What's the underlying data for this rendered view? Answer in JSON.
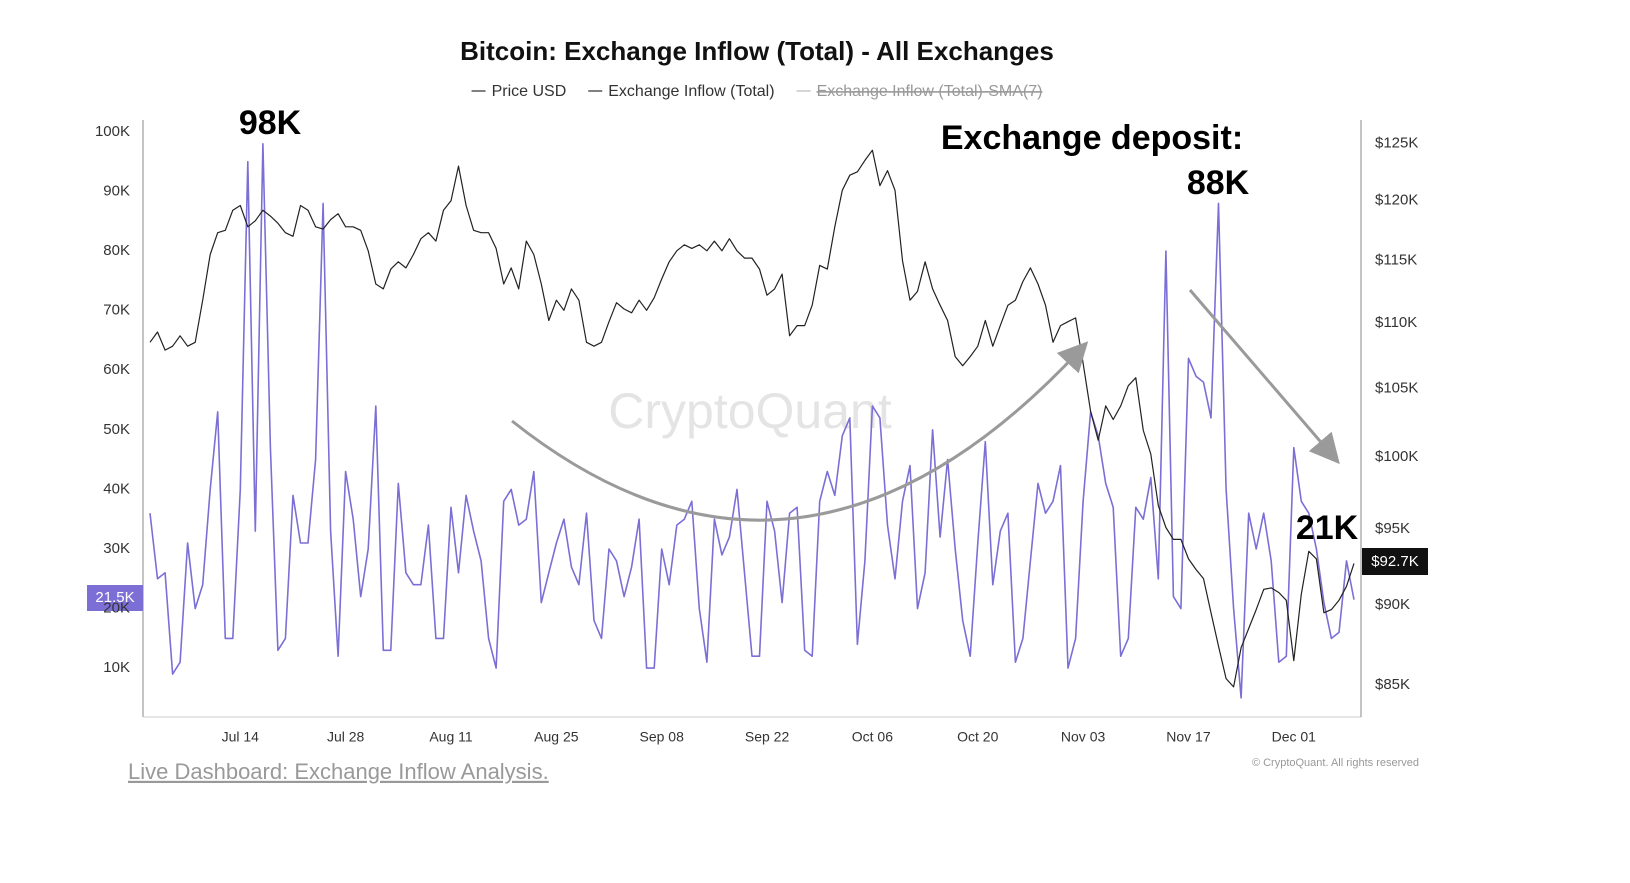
{
  "chart_data": {
    "type": "line",
    "title": "Bitcoin: Exchange Inflow (Total) - All Exchanges",
    "categories": [
      null,
      null,
      null,
      null,
      null,
      null,
      null,
      null,
      null,
      null,
      null,
      null,
      "Jul 14",
      null,
      null,
      null,
      null,
      null,
      null,
      null,
      null,
      null,
      null,
      null,
      null,
      null,
      "Jul 28",
      null,
      null,
      null,
      null,
      null,
      null,
      null,
      null,
      null,
      null,
      null,
      null,
      null,
      "Aug 11",
      null,
      null,
      null,
      null,
      null,
      null,
      null,
      null,
      null,
      null,
      null,
      null,
      null,
      "Aug 25",
      null,
      null,
      null,
      null,
      null,
      null,
      null,
      null,
      null,
      null,
      null,
      null,
      null,
      "Sep 08",
      null,
      null,
      null,
      null,
      null,
      null,
      null,
      null,
      null,
      null,
      null,
      null,
      null,
      "Sep 22",
      null,
      null,
      null,
      null,
      null,
      null,
      null,
      null,
      null,
      null,
      null,
      null,
      null,
      "Oct 06",
      null,
      null,
      null,
      null,
      null,
      null,
      null,
      null,
      null,
      null,
      null,
      null,
      null,
      "Oct 20",
      null,
      null,
      null,
      null,
      null,
      null,
      null,
      null,
      null,
      null,
      null,
      null,
      null,
      "Nov 03",
      null,
      null,
      null,
      null,
      null,
      null,
      null,
      null,
      null,
      null,
      null,
      null,
      null,
      "Nov 17",
      null,
      null,
      null,
      null,
      null,
      null,
      null,
      null,
      null,
      null,
      null,
      null,
      null,
      "Dec 01",
      null,
      null,
      null,
      null,
      null,
      null,
      null,
      null
    ],
    "series": [
      {
        "name": "Price USD",
        "color": "#222222",
        "axis": "y2",
        "values": [
          108500,
          109300,
          107900,
          108200,
          109000,
          108200,
          108500,
          111800,
          115500,
          117300,
          117500,
          119200,
          119600,
          117800,
          118300,
          119200,
          118700,
          118100,
          117300,
          117000,
          119600,
          119200,
          117800,
          117600,
          118400,
          118900,
          117800,
          117800,
          117500,
          115800,
          113100,
          112700,
          114300,
          114900,
          114400,
          115500,
          116800,
          117300,
          116600,
          119200,
          120000,
          123000,
          119600,
          117500,
          117300,
          117300,
          116000,
          113100,
          114400,
          112700,
          116600,
          115500,
          113100,
          110200,
          111800,
          111000,
          112700,
          111800,
          108500,
          108200,
          108500,
          110100,
          111600,
          111100,
          110800,
          111800,
          111000,
          112000,
          113500,
          114900,
          115800,
          116300,
          116000,
          116300,
          115800,
          116600,
          115800,
          116800,
          115800,
          115200,
          115200,
          114300,
          112200,
          112700,
          113900,
          109000,
          109800,
          109800,
          111400,
          114600,
          114300,
          117800,
          120900,
          122200,
          122500,
          123500,
          124400,
          121300,
          122600,
          120900,
          115000,
          111800,
          112500,
          114900,
          112700,
          111400,
          110200,
          107400,
          106700,
          107400,
          108200,
          110200,
          108200,
          109800,
          111400,
          111800,
          113300,
          114400,
          113100,
          111400,
          108500,
          109800,
          110100,
          110400,
          106900,
          103300,
          101200,
          103700,
          102700,
          103700,
          105200,
          105800,
          101900,
          100200,
          96600,
          95100,
          94300,
          94300,
          93000,
          92300,
          91700,
          89500,
          87400,
          85400,
          84900,
          87300,
          88500,
          89700,
          91000,
          91100,
          90800,
          90300,
          86500,
          90700,
          93500,
          93000,
          89500,
          89700,
          90300,
          91200,
          92700
        ]
      },
      {
        "name": "Exchange Inflow (Total)",
        "color": "#7b6fd6",
        "values": [
          36000,
          25000,
          26000,
          9000,
          11000,
          31000,
          20000,
          24000,
          40000,
          53000,
          15000,
          15000,
          40000,
          95000,
          33000,
          98000,
          47000,
          13000,
          15000,
          39000,
          31000,
          31000,
          45000,
          88000,
          33000,
          12000,
          43000,
          35000,
          22000,
          30000,
          54000,
          13000,
          13000,
          41000,
          26000,
          24000,
          24000,
          34000,
          15000,
          15000,
          37000,
          26000,
          39000,
          33000,
          28000,
          15000,
          10000,
          38000,
          40000,
          34000,
          35000,
          43000,
          21000,
          26000,
          31000,
          35000,
          27000,
          24000,
          36000,
          18000,
          15000,
          30000,
          28000,
          22000,
          27000,
          35000,
          10000,
          10000,
          30000,
          24000,
          34000,
          35000,
          38000,
          20000,
          11000,
          35000,
          29000,
          32000,
          40000,
          26000,
          12000,
          12000,
          38000,
          33000,
          21000,
          36000,
          37000,
          13000,
          12000,
          38000,
          43000,
          39000,
          49000,
          52000,
          14000,
          28000,
          54000,
          52000,
          34000,
          25000,
          38000,
          44000,
          20000,
          26000,
          50000,
          32000,
          45000,
          30000,
          18000,
          12000,
          31000,
          48000,
          24000,
          33000,
          36000,
          11000,
          15000,
          28000,
          41000,
          36000,
          38000,
          44000,
          10000,
          15000,
          38000,
          53000,
          49000,
          41000,
          37000,
          12000,
          15000,
          37000,
          35000,
          42000,
          25000,
          80000,
          22000,
          20000,
          62000,
          59000,
          58000,
          52000,
          88000,
          40000,
          20000,
          5000,
          36000,
          30000,
          36000,
          28000,
          11000,
          12000,
          47000,
          38000,
          36000,
          30000,
          21000,
          15000,
          16000,
          28000,
          21500
        ]
      },
      {
        "name": "Exchange Inflow (Total)-SMA(7)",
        "color": "#c8c8c8",
        "hidden": true
      }
    ],
    "ylim": [
      1800,
      102000
    ],
    "yticks": [
      {
        "value": 10000,
        "label": "10K"
      },
      {
        "value": 20000,
        "label": "20K"
      },
      {
        "value": 30000,
        "label": "30K"
      },
      {
        "value": 40000,
        "label": "40K"
      },
      {
        "value": 50000,
        "label": "50K"
      },
      {
        "value": 60000,
        "label": "60K"
      },
      {
        "value": 70000,
        "label": "70K"
      },
      {
        "value": 80000,
        "label": "80K"
      },
      {
        "value": 90000,
        "label": "90K"
      },
      {
        "value": 100000,
        "label": "100K"
      }
    ],
    "y2lim": [
      83100,
      127100
    ],
    "y2scale": "log",
    "y2ticks": [
      {
        "value": 85000,
        "label": "$85K"
      },
      {
        "value": 90000,
        "label": "$90K"
      },
      {
        "value": 95000,
        "label": "$95K"
      },
      {
        "value": 100000,
        "label": "$100K"
      },
      {
        "value": 105000,
        "label": "$105K"
      },
      {
        "value": 110000,
        "label": "$110K"
      },
      {
        "value": 115000,
        "label": "$115K"
      },
      {
        "value": 120000,
        "label": "$120K"
      },
      {
        "value": 125000,
        "label": "$125K"
      }
    ],
    "grid": false,
    "annotations": [
      "98K",
      "Exchange deposit:",
      "88K",
      "21K",
      "21.5K",
      "$92.7K"
    ],
    "watermark": "CryptoQuant",
    "copyright": "© CryptoQuant. All rights reserved",
    "link": "Live Dashboard: Exchange Inflow Analysis."
  }
}
